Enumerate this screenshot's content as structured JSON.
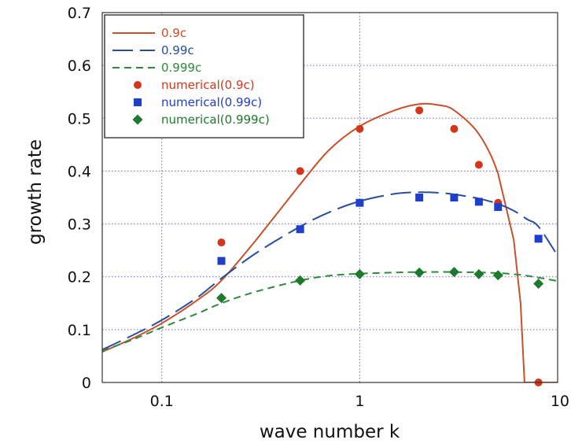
{
  "chart_data": {
    "type": "line",
    "xlabel": "wave number k",
    "ylabel": "growth rate",
    "xscale": "log",
    "xlim": [
      0.05,
      10
    ],
    "ylim": [
      0,
      0.7
    ],
    "x_ticks": [
      0.1,
      1,
      10
    ],
    "x_tick_labels": [
      "0.1",
      "1",
      "10"
    ],
    "y_ticks": [
      0,
      0.1,
      0.2,
      0.3,
      0.4,
      0.5,
      0.6,
      0.7
    ],
    "y_tick_labels": [
      "0",
      "0.1",
      "0.2",
      "0.3",
      "0.4",
      "0.5",
      "0.6",
      "0.7"
    ],
    "grid": "dotted",
    "legend_position": "top-left",
    "series": [
      {
        "name": "0.9c",
        "kind": "line",
        "style": "solid",
        "color": "#c8502a",
        "x": [
          0.05,
          0.07,
          0.1,
          0.15,
          0.2,
          0.3,
          0.5,
          0.7,
          1,
          1.5,
          2,
          2.5,
          3,
          4,
          5,
          6,
          6.5,
          6.8,
          10
        ],
        "y": [
          0.058,
          0.082,
          0.112,
          0.155,
          0.193,
          0.27,
          0.375,
          0.44,
          0.485,
          0.515,
          0.527,
          0.525,
          0.515,
          0.47,
          0.395,
          0.27,
          0.15,
          0.0,
          0.0
        ]
      },
      {
        "name": "0.99c",
        "kind": "line",
        "style": "long-dash",
        "color": "#2a4e9c",
        "x": [
          0.05,
          0.07,
          0.1,
          0.15,
          0.2,
          0.3,
          0.5,
          0.7,
          1,
          1.5,
          2,
          2.5,
          3,
          4,
          5,
          6,
          7,
          8,
          10
        ],
        "y": [
          0.062,
          0.088,
          0.118,
          0.16,
          0.197,
          0.245,
          0.295,
          0.322,
          0.343,
          0.357,
          0.36,
          0.359,
          0.356,
          0.348,
          0.338,
          0.325,
          0.309,
          0.295,
          0.24
        ]
      },
      {
        "name": "0.999c",
        "kind": "line",
        "style": "short-dash",
        "color": "#2e8a3c",
        "x": [
          0.05,
          0.07,
          0.1,
          0.15,
          0.2,
          0.3,
          0.5,
          0.7,
          1,
          1.5,
          2,
          3,
          5,
          7,
          10
        ],
        "y": [
          0.06,
          0.08,
          0.104,
          0.13,
          0.15,
          0.172,
          0.193,
          0.202,
          0.206,
          0.208,
          0.209,
          0.209,
          0.207,
          0.202,
          0.192
        ]
      },
      {
        "name": "numerical(0.9c)",
        "kind": "points",
        "marker": "circle",
        "color": "#d4361a",
        "x": [
          0.2,
          0.5,
          1,
          2,
          3,
          4,
          5,
          8
        ],
        "y": [
          0.265,
          0.4,
          0.48,
          0.515,
          0.48,
          0.412,
          0.34,
          0.0
        ]
      },
      {
        "name": "numerical(0.99c)",
        "kind": "points",
        "marker": "square",
        "color": "#1f3ec9",
        "x": [
          0.2,
          0.5,
          1,
          2,
          3,
          4,
          5,
          8
        ],
        "y": [
          0.23,
          0.29,
          0.34,
          0.35,
          0.35,
          0.342,
          0.332,
          0.272
        ]
      },
      {
        "name": "numerical(0.999c)",
        "kind": "points",
        "marker": "diamond",
        "color": "#1d7a2c",
        "x": [
          0.2,
          0.5,
          1,
          2,
          3,
          4,
          5,
          8
        ],
        "y": [
          0.16,
          0.193,
          0.205,
          0.208,
          0.209,
          0.205,
          0.203,
          0.187
        ]
      }
    ]
  }
}
